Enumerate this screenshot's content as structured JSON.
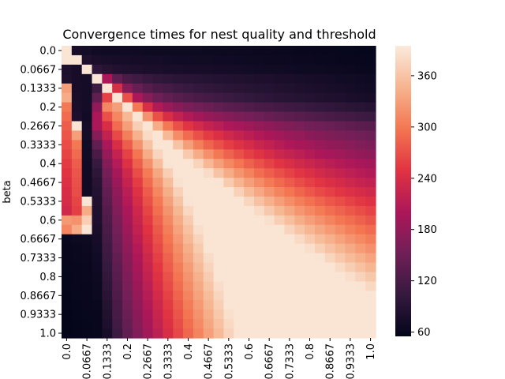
{
  "chart_data": {
    "type": "heatmap",
    "title": "Convergence times for nest quality and threshold",
    "xlabel": "",
    "ylabel": "beta",
    "x_tick_labels": [
      "0.0",
      "0.0667",
      "0.1333",
      "0.2",
      "0.2667",
      "0.3333",
      "0.4",
      "0.4667",
      "0.5333",
      "0.6",
      "0.6667",
      "0.7333",
      "0.8",
      "0.8667",
      "0.9333",
      "1.0"
    ],
    "y_tick_labels": [
      "0.0",
      "0.0667",
      "0.1333",
      "0.2",
      "0.2667",
      "0.3333",
      "0.4",
      "0.4667",
      "0.5333",
      "0.6",
      "0.6667",
      "0.7333",
      "0.8",
      "0.8667",
      "0.9333",
      "1.0"
    ],
    "x": [
      0.0,
      0.0333,
      0.0667,
      0.1,
      0.1333,
      0.1667,
      0.2,
      0.2333,
      0.2667,
      0.3,
      0.3333,
      0.3667,
      0.4,
      0.4333,
      0.4667,
      0.5,
      0.5333,
      0.5667,
      0.6,
      0.6333,
      0.6667,
      0.7,
      0.7333,
      0.7667,
      0.8,
      0.8333,
      0.8667,
      0.9,
      0.9333,
      0.9667,
      1.0
    ],
    "y": [
      0.0,
      0.0333,
      0.0667,
      0.1,
      0.1333,
      0.1667,
      0.2,
      0.2333,
      0.2667,
      0.3,
      0.3333,
      0.3667,
      0.4,
      0.4333,
      0.4667,
      0.5,
      0.5333,
      0.5667,
      0.6,
      0.6333,
      0.6667,
      0.7,
      0.7333,
      0.7667,
      0.8,
      0.8333,
      0.8667,
      0.9,
      0.9333,
      0.9667,
      1.0
    ],
    "values_description": "Grid of convergence times (x by y); values range about 55 to 395, saturating at the top of the colorbar along the diagonal and lower-right region.",
    "values": [
      [
        390,
        75,
        72,
        70,
        68,
        68,
        68,
        68,
        66,
        66,
        66,
        66,
        66,
        66,
        65,
        65,
        64,
        64,
        64,
        63,
        63,
        62,
        62,
        61,
        61,
        60,
        60,
        59,
        59,
        58,
        58
      ],
      [
        390,
        390,
        82,
        78,
        76,
        75,
        74,
        73,
        72,
        72,
        71,
        70,
        70,
        69,
        69,
        68,
        68,
        67,
        66,
        66,
        65,
        64,
        64,
        63,
        63,
        62,
        62,
        61,
        60,
        60,
        59
      ],
      [
        80,
        74,
        390,
        96,
        88,
        84,
        82,
        80,
        78,
        78,
        76,
        76,
        75,
        74,
        74,
        73,
        72,
        72,
        71,
        70,
        69,
        69,
        68,
        67,
        66,
        66,
        65,
        64,
        63,
        62,
        62
      ],
      [
        82,
        74,
        72,
        390,
        200,
        140,
        120,
        112,
        105,
        100,
        96,
        94,
        92,
        90,
        88,
        86,
        85,
        84,
        82,
        81,
        80,
        78,
        77,
        76,
        74,
        73,
        72,
        70,
        69,
        68,
        67
      ],
      [
        330,
        74,
        72,
        110,
        390,
        240,
        170,
        145,
        130,
        122,
        116,
        110,
        106,
        102,
        100,
        97,
        94,
        92,
        90,
        88,
        86,
        84,
        83,
        81,
        79,
        78,
        76,
        74,
        73,
        71,
        70
      ],
      [
        340,
        76,
        72,
        140,
        260,
        390,
        270,
        200,
        170,
        150,
        140,
        132,
        126,
        120,
        116,
        112,
        108,
        104,
        101,
        98,
        95,
        92,
        90,
        88,
        86,
        84,
        82,
        80,
        78,
        76,
        74
      ],
      [
        300,
        78,
        72,
        180,
        310,
        330,
        390,
        300,
        240,
        205,
        185,
        170,
        160,
        152,
        146,
        140,
        135,
        130,
        126,
        122,
        118,
        114,
        111,
        108,
        105,
        102,
        99,
        96,
        94,
        91,
        89
      ],
      [
        290,
        80,
        70,
        200,
        270,
        310,
        350,
        390,
        320,
        270,
        240,
        220,
        205,
        193,
        183,
        175,
        168,
        162,
        156,
        150,
        145,
        140,
        136,
        132,
        128,
        124,
        120,
        117,
        114,
        111,
        108
      ],
      [
        280,
        390,
        72,
        200,
        240,
        290,
        330,
        370,
        390,
        340,
        300,
        270,
        250,
        235,
        222,
        212,
        203,
        195,
        188,
        181,
        175,
        169,
        164,
        159,
        154,
        150,
        146,
        142,
        138,
        135,
        132
      ],
      [
        275,
        330,
        72,
        170,
        220,
        265,
        305,
        345,
        380,
        390,
        350,
        315,
        290,
        270,
        255,
        243,
        232,
        222,
        213,
        205,
        198,
        191,
        185,
        179,
        174,
        169,
        164,
        160,
        156,
        152,
        149
      ],
      [
        268,
        300,
        70,
        140,
        200,
        240,
        280,
        320,
        360,
        390,
        390,
        360,
        330,
        305,
        285,
        270,
        257,
        246,
        236,
        227,
        218,
        210,
        203,
        197,
        191,
        185,
        180,
        175,
        171,
        166,
        162
      ],
      [
        262,
        290,
        70,
        120,
        182,
        222,
        260,
        298,
        340,
        376,
        390,
        390,
        365,
        340,
        318,
        300,
        284,
        270,
        258,
        247,
        238,
        229,
        221,
        214,
        207,
        201,
        195,
        190,
        185,
        180,
        176
      ],
      [
        255,
        280,
        68,
        104,
        168,
        208,
        245,
        282,
        318,
        355,
        388,
        390,
        390,
        375,
        350,
        330,
        312,
        297,
        283,
        271,
        260,
        250,
        241,
        233,
        226,
        219,
        213,
        207,
        202,
        197,
        192
      ],
      [
        250,
        275,
        68,
        96,
        156,
        196,
        232,
        268,
        302,
        336,
        370,
        390,
        390,
        390,
        382,
        360,
        340,
        322,
        307,
        293,
        281,
        270,
        260,
        251,
        243,
        235,
        228,
        222,
        216,
        210,
        205
      ],
      [
        245,
        270,
        68,
        90,
        148,
        186,
        222,
        256,
        290,
        322,
        354,
        386,
        390,
        390,
        390,
        388,
        366,
        347,
        330,
        315,
        301,
        289,
        278,
        268,
        259,
        251,
        243,
        236,
        230,
        224,
        218
      ],
      [
        240,
        268,
        68,
        86,
        140,
        178,
        212,
        246,
        278,
        310,
        342,
        372,
        390,
        390,
        390,
        390,
        390,
        372,
        353,
        337,
        322,
        309,
        297,
        286,
        276,
        267,
        259,
        251,
        244,
        238,
        232
      ],
      [
        238,
        262,
        390,
        84,
        134,
        172,
        206,
        238,
        270,
        300,
        331,
        360,
        388,
        390,
        390,
        390,
        390,
        390,
        376,
        359,
        343,
        329,
        316,
        305,
        294,
        285,
        276,
        268,
        260,
        253,
        246
      ],
      [
        232,
        258,
        340,
        82,
        128,
        166,
        200,
        231,
        262,
        292,
        321,
        349,
        377,
        390,
        390,
        390,
        390,
        390,
        390,
        380,
        364,
        349,
        336,
        323,
        312,
        302,
        293,
        284,
        276,
        268,
        261
      ],
      [
        325,
        320,
        370,
        80,
        124,
        160,
        194,
        225,
        255,
        284,
        312,
        340,
        367,
        390,
        390,
        390,
        390,
        390,
        390,
        390,
        385,
        370,
        356,
        342,
        330,
        319,
        309,
        299,
        291,
        283,
        275
      ],
      [
        310,
        340,
        390,
        78,
        120,
        155,
        188,
        219,
        248,
        277,
        305,
        332,
        358,
        384,
        390,
        390,
        390,
        390,
        390,
        390,
        390,
        390,
        375,
        361,
        348,
        336,
        326,
        316,
        306,
        298,
        290
      ],
      [
        62,
        64,
        66,
        74,
        116,
        150,
        182,
        213,
        242,
        270,
        298,
        324,
        350,
        375,
        390,
        390,
        390,
        390,
        390,
        390,
        390,
        390,
        390,
        380,
        366,
        354,
        343,
        332,
        322,
        313,
        305
      ],
      [
        60,
        62,
        64,
        72,
        112,
        146,
        177,
        207,
        236,
        264,
        291,
        317,
        342,
        366,
        390,
        390,
        390,
        390,
        390,
        390,
        390,
        390,
        390,
        390,
        384,
        371,
        359,
        348,
        338,
        328,
        319
      ],
      [
        60,
        62,
        63,
        70,
        108,
        141,
        172,
        202,
        230,
        258,
        284,
        310,
        335,
        359,
        382,
        390,
        390,
        390,
        390,
        390,
        390,
        390,
        390,
        390,
        390,
        388,
        376,
        364,
        353,
        343,
        334
      ],
      [
        59,
        61,
        62,
        68,
        104,
        137,
        168,
        197,
        225,
        252,
        278,
        303,
        328,
        352,
        375,
        390,
        390,
        390,
        390,
        390,
        390,
        390,
        390,
        390,
        390,
        390,
        390,
        380,
        369,
        358,
        348
      ],
      [
        58,
        60,
        62,
        66,
        100,
        133,
        163,
        192,
        220,
        246,
        272,
        297,
        321,
        345,
        368,
        390,
        390,
        390,
        390,
        390,
        390,
        390,
        390,
        390,
        390,
        390,
        390,
        390,
        384,
        373,
        363
      ],
      [
        58,
        60,
        61,
        65,
        96,
        129,
        159,
        187,
        214,
        241,
        266,
        291,
        315,
        338,
        361,
        383,
        390,
        390,
        390,
        390,
        390,
        390,
        390,
        390,
        390,
        390,
        390,
        390,
        390,
        388,
        378
      ],
      [
        57,
        59,
        60,
        64,
        92,
        125,
        155,
        183,
        209,
        235,
        260,
        285,
        309,
        332,
        354,
        376,
        390,
        390,
        390,
        390,
        390,
        390,
        390,
        390,
        390,
        390,
        390,
        390,
        390,
        390,
        390
      ],
      [
        57,
        58,
        60,
        62,
        88,
        121,
        151,
        178,
        205,
        230,
        255,
        279,
        303,
        326,
        348,
        370,
        390,
        390,
        390,
        390,
        390,
        390,
        390,
        390,
        390,
        390,
        390,
        390,
        390,
        390,
        390
      ],
      [
        56,
        58,
        59,
        61,
        84,
        118,
        147,
        174,
        200,
        225,
        250,
        274,
        297,
        320,
        342,
        364,
        385,
        390,
        390,
        390,
        390,
        390,
        390,
        390,
        390,
        390,
        390,
        390,
        390,
        390,
        390
      ],
      [
        56,
        57,
        58,
        60,
        80,
        114,
        143,
        170,
        196,
        221,
        245,
        269,
        292,
        314,
        336,
        358,
        379,
        390,
        390,
        390,
        390,
        390,
        390,
        390,
        390,
        390,
        390,
        390,
        390,
        390,
        390
      ],
      [
        55,
        57,
        58,
        59,
        76,
        110,
        140,
        166,
        192,
        216,
        240,
        264,
        287,
        309,
        331,
        352,
        373,
        390,
        390,
        390,
        390,
        390,
        390,
        390,
        390,
        390,
        390,
        390,
        390,
        390,
        390
      ]
    ],
    "colorbar": {
      "vmin": 55,
      "vmax": 395,
      "ticks": [
        "60",
        "120",
        "180",
        "240",
        "300",
        "360"
      ],
      "tick_values": [
        60,
        120,
        180,
        240,
        300,
        360
      ],
      "colormap": "rocket",
      "color_stops": [
        "#03051a",
        "#35193e",
        "#701f57",
        "#ad1759",
        "#e13342",
        "#f37651",
        "#f6b48f",
        "#faebdd"
      ]
    }
  }
}
